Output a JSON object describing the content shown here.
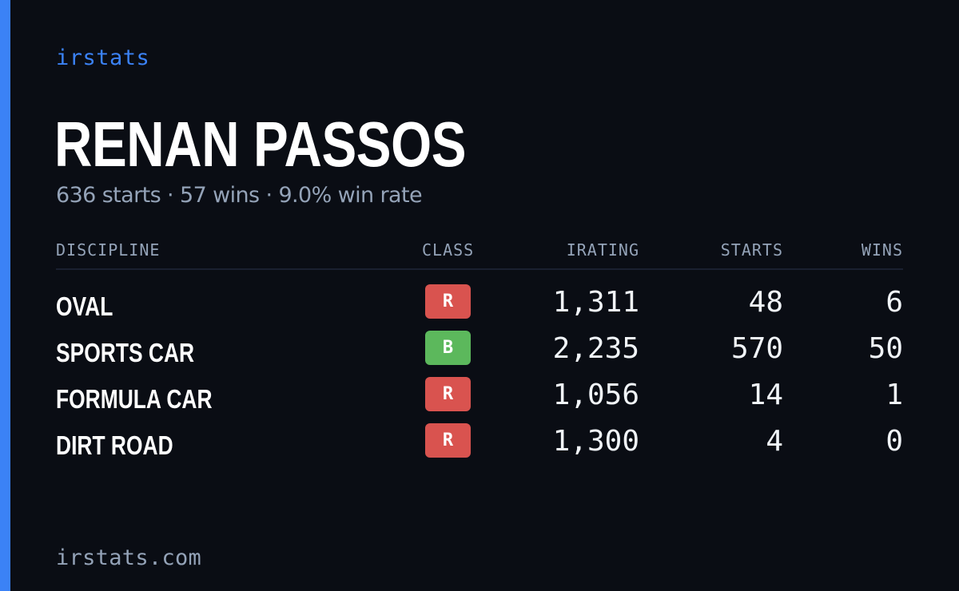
{
  "brand": "irstats",
  "driver": {
    "name": "RENAN PASSOS",
    "summary": "636 starts · 57 wins · 9.0% win rate"
  },
  "table": {
    "headers": {
      "discipline": "DISCIPLINE",
      "class": "CLASS",
      "irating": "IRATING",
      "starts": "STARTS",
      "wins": "WINS"
    },
    "rows": [
      {
        "discipline": "OVAL",
        "class": "R",
        "irating": "1,311",
        "starts": "48",
        "wins": "6"
      },
      {
        "discipline": "SPORTS CAR",
        "class": "B",
        "irating": "2,235",
        "starts": "570",
        "wins": "50"
      },
      {
        "discipline": "FORMULA CAR",
        "class": "R",
        "irating": "1,056",
        "starts": "14",
        "wins": "1"
      },
      {
        "discipline": "DIRT ROAD",
        "class": "R",
        "irating": "1,300",
        "starts": "4",
        "wins": "0"
      }
    ]
  },
  "class_colors": {
    "R": "#d9534f",
    "B": "#5cb85c"
  },
  "colors": {
    "accent": "#3b82f6",
    "background": "#0a0d14",
    "muted": "#94a3b8"
  },
  "footer": "irstats.com"
}
